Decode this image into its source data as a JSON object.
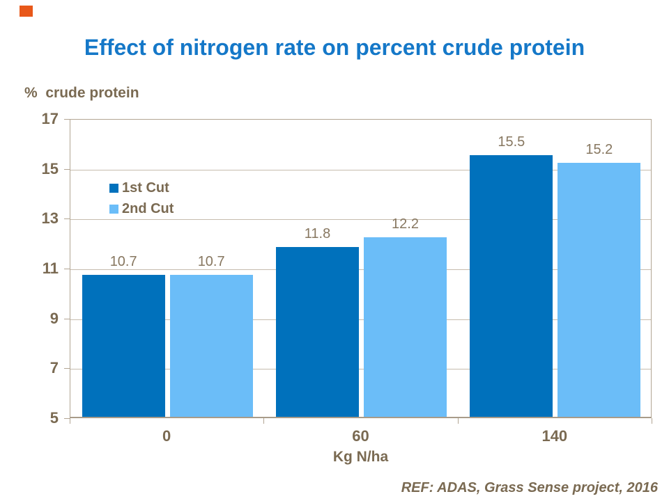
{
  "slide": {
    "footer": "REF: ADAS, Grass Sense project, 2016",
    "accent_color": "#e8581a"
  },
  "chart_data": {
    "type": "bar",
    "title": "Effect of nitrogen rate on percent crude protein",
    "y_axis_title": "%  crude protein",
    "xlabel": "Kg N/ha",
    "categories": [
      "0",
      "60",
      "140"
    ],
    "series": [
      {
        "name": "1st Cut",
        "color": "#0071bc",
        "values": [
          10.7,
          11.8,
          15.5
        ]
      },
      {
        "name": "2nd Cut",
        "color": "#6bbdf8",
        "values": [
          10.7,
          12.2,
          15.2
        ]
      }
    ],
    "ylim": [
      5,
      17
    ],
    "yticks": [
      17,
      15,
      13,
      11,
      9,
      7,
      5
    ],
    "grid": true,
    "data_labels": true,
    "legend_position": "inside-top-left"
  },
  "colors": {
    "title_text": "#1578c8",
    "axis_text": "#7a6a52",
    "data_label_text": "#877760",
    "grid_line": "#c6bcae",
    "axis_line": "#b2a593"
  }
}
